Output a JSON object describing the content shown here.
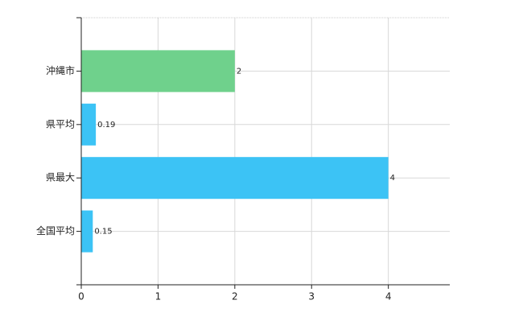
{
  "chart_data": {
    "type": "bar",
    "orientation": "horizontal",
    "categories": [
      "沖縄市",
      "県平均",
      "県最大",
      "全国平均"
    ],
    "values": [
      2,
      0.19,
      4,
      0.15
    ],
    "colors": [
      "#6fd18c",
      "#3cc3f5",
      "#3cc3f5",
      "#3cc3f5"
    ],
    "xlim": [
      0,
      4.8
    ],
    "xticks": [
      0,
      1,
      2,
      3,
      4
    ],
    "grid": true
  }
}
